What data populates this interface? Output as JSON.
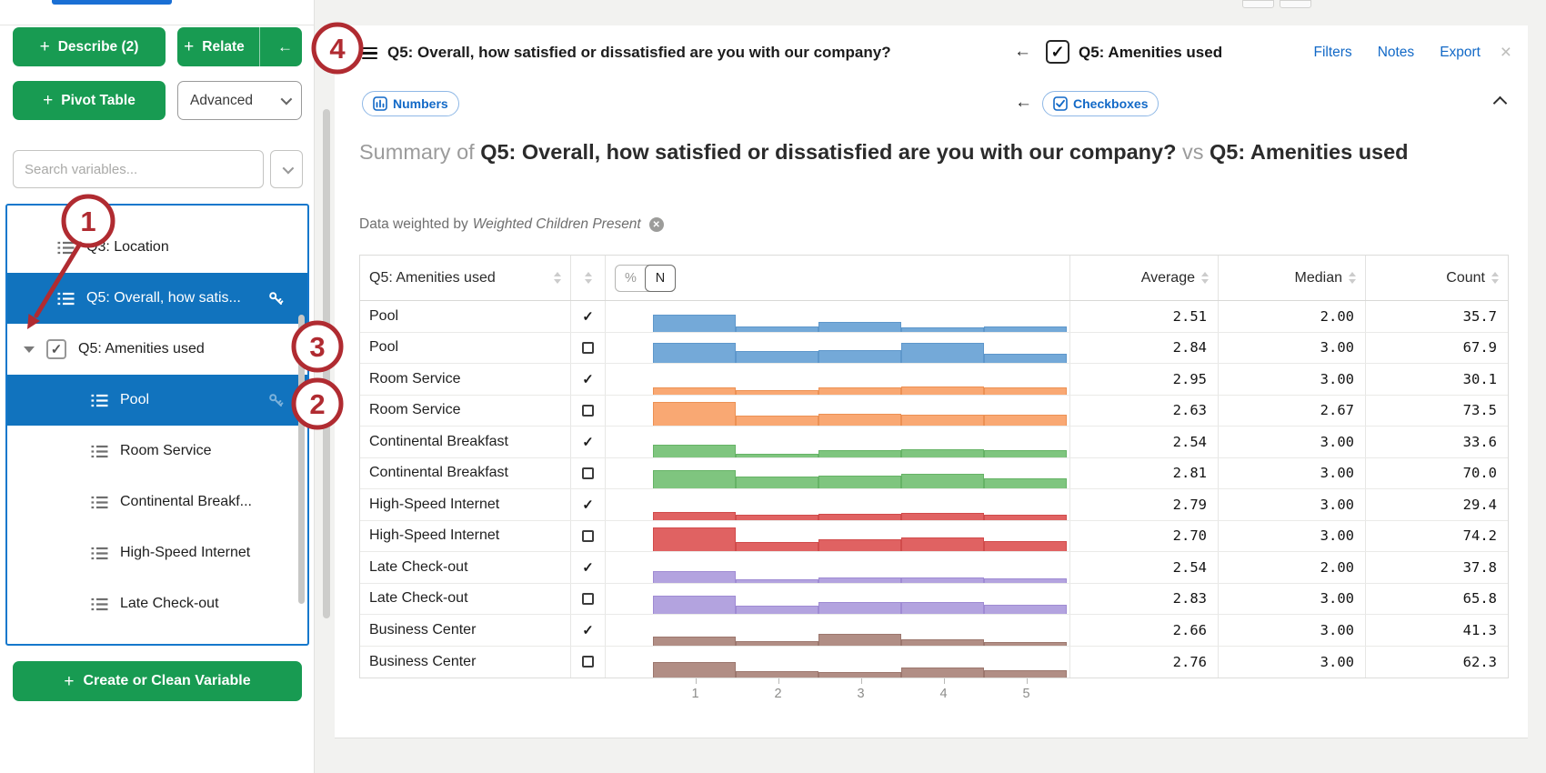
{
  "sidebar": {
    "describe_button": "Describe (2)",
    "relate_button": "Relate",
    "back_button": "←",
    "pivot_button": "Pivot Table",
    "advanced_dropdown": "Advanced",
    "search_placeholder": "Search variables...",
    "variables": [
      {
        "label": "Q3: Location",
        "icon": "list",
        "indent": 0,
        "selected": false
      },
      {
        "label": "Q5: Overall, how satis...",
        "icon": "list",
        "indent": 0,
        "selected": true,
        "key": true
      },
      {
        "label": "Q5: Amenities used",
        "caret": true,
        "checkbox": true,
        "checked": true,
        "indent": 0,
        "selected": false
      },
      {
        "label": "Pool",
        "icon": "list",
        "indent": 1,
        "selected": true,
        "key": true,
        "key_faint": true
      },
      {
        "label": "Room Service",
        "icon": "list",
        "indent": 1,
        "selected": false
      },
      {
        "label": "Continental Breakf...",
        "icon": "list",
        "indent": 1,
        "selected": false
      },
      {
        "label": "High-Speed Internet",
        "icon": "list",
        "indent": 1,
        "selected": false
      },
      {
        "label": "Late Check-out",
        "icon": "list",
        "indent": 1,
        "selected": false
      }
    ],
    "create_button": "Create or Clean Variable"
  },
  "header": {
    "primary_title": "Q5: Overall, how satisfied or dissatisfied are you with our company?",
    "back_arrow": "←",
    "checkbox_mark": "✓",
    "secondary_title": "Q5: Amenities used",
    "links": [
      "Filters",
      "Notes",
      "Export"
    ],
    "close": "×"
  },
  "tabs": {
    "numbers_tab": "Numbers",
    "back_arrow": "←",
    "checkboxes_tab": "Checkboxes"
  },
  "summary": {
    "prefix": "Summary of",
    "title_main": "Q5: Overall, how satisfied or dissatisfied are you with our company?",
    "vs": "vs",
    "title_secondary": "Q5: Amenities used",
    "weight_prefix": "Data weighted by",
    "weight_name": "Weighted Children Present"
  },
  "table": {
    "variable_header": "Q5: Amenities used",
    "toggle": {
      "percent": "%",
      "n": "N",
      "selected": "N"
    },
    "columns": [
      "Average",
      "Median",
      "Count"
    ],
    "axis_ticks": [
      "1",
      "2",
      "3",
      "4",
      "5"
    ],
    "palette": {
      "blue": {
        "fill": "#74A9D8",
        "edge": "#5E97CB"
      },
      "orange": {
        "fill": "#F9A873",
        "edge": "#EC9154"
      },
      "green": {
        "fill": "#7FC57F",
        "edge": "#66B366"
      },
      "red": {
        "fill": "#E06262",
        "edge": "#D14B4B"
      },
      "purple": {
        "fill": "#B3A3DF",
        "edge": "#9F8BD3"
      },
      "brown": {
        "fill": "#B18E85",
        "edge": "#9C776E"
      }
    },
    "rows": [
      {
        "label": "Pool",
        "checked": true,
        "color": "blue",
        "bins": [
          19,
          6,
          11,
          5,
          6
        ],
        "average": "2.51",
        "median": "2.00",
        "count": "35.7"
      },
      {
        "label": "Pool",
        "checked": false,
        "color": "blue",
        "bins": [
          22,
          13,
          14,
          22,
          10
        ],
        "average": "2.84",
        "median": "3.00",
        "count": "67.9"
      },
      {
        "label": "Room Service",
        "checked": true,
        "color": "orange",
        "bins": [
          8,
          5,
          8,
          9,
          8
        ],
        "average": "2.95",
        "median": "3.00",
        "count": "30.1"
      },
      {
        "label": "Room Service",
        "checked": false,
        "color": "orange",
        "bins": [
          26,
          11,
          13,
          12,
          12
        ],
        "average": "2.63",
        "median": "2.67",
        "count": "73.5"
      },
      {
        "label": "Continental Breakfast",
        "checked": true,
        "color": "green",
        "bins": [
          14,
          4,
          8,
          9,
          8
        ],
        "average": "2.54",
        "median": "3.00",
        "count": "33.6"
      },
      {
        "label": "Continental Breakfast",
        "checked": false,
        "color": "green",
        "bins": [
          20,
          13,
          14,
          16,
          11
        ],
        "average": "2.81",
        "median": "3.00",
        "count": "70.0"
      },
      {
        "label": "High-Speed Internet",
        "checked": true,
        "color": "red",
        "bins": [
          9,
          6,
          7,
          8,
          6
        ],
        "average": "2.79",
        "median": "3.00",
        "count": "29.4"
      },
      {
        "label": "High-Speed Internet",
        "checked": false,
        "color": "red",
        "bins": [
          26,
          10,
          13,
          15,
          11
        ],
        "average": "2.70",
        "median": "3.00",
        "count": "74.2"
      },
      {
        "label": "Late Check-out",
        "checked": true,
        "color": "purple",
        "bins": [
          13,
          4,
          6,
          6,
          5
        ],
        "average": "2.54",
        "median": "2.00",
        "count": "37.8"
      },
      {
        "label": "Late Check-out",
        "checked": false,
        "color": "purple",
        "bins": [
          20,
          9,
          13,
          13,
          10
        ],
        "average": "2.83",
        "median": "3.00",
        "count": "65.8"
      },
      {
        "label": "Business Center",
        "checked": true,
        "color": "brown",
        "bins": [
          10,
          5,
          13,
          7,
          4
        ],
        "average": "2.66",
        "median": "3.00",
        "count": "41.3"
      },
      {
        "label": "Business Center",
        "checked": false,
        "color": "brown",
        "bins": [
          17,
          7,
          6,
          11,
          8
        ],
        "average": "2.76",
        "median": "3.00",
        "count": "62.3"
      }
    ]
  },
  "annotations": {
    "labels": [
      "1",
      "2",
      "3",
      "4"
    ]
  }
}
